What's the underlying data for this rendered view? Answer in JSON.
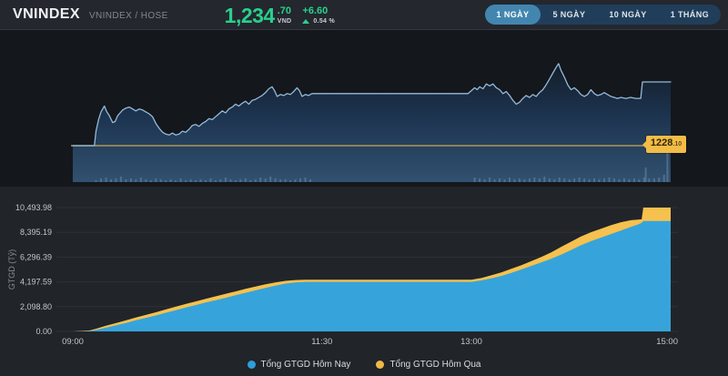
{
  "header": {
    "title": "VNINDEX",
    "subtitle": "VNINDEX / HOSE",
    "price_int": "1,234",
    "price_dec": ".70",
    "currency": "VND",
    "change": "+6.60",
    "change_pct": "0.54 %",
    "up_color": "#29d08d",
    "range_buttons": [
      {
        "label": "1 NGÀY",
        "active": true
      },
      {
        "label": "5 NGÀY",
        "active": false
      },
      {
        "label": "10 NGÀY",
        "active": false
      },
      {
        "label": "1 THÁNG",
        "active": false
      }
    ]
  },
  "chart_data": [
    {
      "type": "line",
      "title": "VNINDEX intraday price",
      "x_unit": "minutes from 09:00",
      "x_range": [
        0,
        360
      ],
      "y_domain": [
        1224.3,
        1238.4
      ],
      "reference_price": 1228.1,
      "reference_label_int": "1228",
      "reference_label_dec": ".10",
      "line_color": "#93bad9",
      "reference_line_color": "#b09655",
      "reference_label_bg": "#f3bc47",
      "fill_gradient": [
        "#141d29",
        "#1d3450",
        "#31516f"
      ],
      "volume_bar_color": "rgba(150,190,225,0.30)",
      "points": [
        [
          0,
          1228.1
        ],
        [
          13,
          1228.1
        ],
        [
          14,
          1229.6
        ],
        [
          15.5,
          1230.8
        ],
        [
          17,
          1231.6
        ],
        [
          19,
          1232.2
        ],
        [
          20.5,
          1231.6
        ],
        [
          22,
          1231.2
        ],
        [
          24,
          1230.5
        ],
        [
          25.5,
          1230.6
        ],
        [
          27,
          1231.2
        ],
        [
          28.5,
          1231.5
        ],
        [
          30,
          1231.8
        ],
        [
          32,
          1232.0
        ],
        [
          34,
          1232.1
        ],
        [
          36,
          1231.9
        ],
        [
          38,
          1231.7
        ],
        [
          40,
          1231.9
        ],
        [
          42,
          1231.8
        ],
        [
          44,
          1231.6
        ],
        [
          46,
          1231.4
        ],
        [
          48,
          1231.1
        ],
        [
          50,
          1230.4
        ],
        [
          52,
          1229.9
        ],
        [
          54,
          1229.5
        ],
        [
          56,
          1229.3
        ],
        [
          58,
          1229.2
        ],
        [
          60,
          1229.4
        ],
        [
          62,
          1229.2
        ],
        [
          64,
          1229.3
        ],
        [
          66,
          1229.6
        ],
        [
          68,
          1229.5
        ],
        [
          70,
          1229.8
        ],
        [
          72,
          1230.2
        ],
        [
          74,
          1230.3
        ],
        [
          76,
          1230.1
        ],
        [
          78,
          1230.4
        ],
        [
          80,
          1230.6
        ],
        [
          82,
          1230.9
        ],
        [
          84,
          1230.8
        ],
        [
          86,
          1231.1
        ],
        [
          88,
          1231.4
        ],
        [
          90,
          1231.7
        ],
        [
          92,
          1231.5
        ],
        [
          94,
          1231.9
        ],
        [
          96,
          1232.1
        ],
        [
          98,
          1232.4
        ],
        [
          100,
          1232.2
        ],
        [
          102,
          1232.5
        ],
        [
          104,
          1232.7
        ],
        [
          106,
          1232.4
        ],
        [
          108,
          1232.8
        ],
        [
          110,
          1232.9
        ],
        [
          112,
          1233.1
        ],
        [
          114,
          1233.3
        ],
        [
          116,
          1233.6
        ],
        [
          118,
          1234.0
        ],
        [
          120,
          1234.2
        ],
        [
          121.5,
          1233.8
        ],
        [
          123,
          1233.2
        ],
        [
          125,
          1233.4
        ],
        [
          127,
          1233.3
        ],
        [
          129,
          1233.5
        ],
        [
          131,
          1233.4
        ],
        [
          133,
          1233.7
        ],
        [
          135,
          1234.1
        ],
        [
          136.5,
          1233.8
        ],
        [
          138,
          1233.2
        ],
        [
          140,
          1233.4
        ],
        [
          142,
          1233.3
        ],
        [
          144,
          1233.5
        ],
        [
          238,
          1233.5
        ],
        [
          240,
          1233.8
        ],
        [
          242,
          1234.1
        ],
        [
          243.5,
          1233.9
        ],
        [
          245,
          1234.2
        ],
        [
          247,
          1234.0
        ],
        [
          249,
          1234.5
        ],
        [
          251,
          1234.3
        ],
        [
          253,
          1234.5
        ],
        [
          255,
          1234.1
        ],
        [
          257,
          1233.9
        ],
        [
          259,
          1233.5
        ],
        [
          261,
          1233.7
        ],
        [
          263,
          1233.3
        ],
        [
          265,
          1232.8
        ],
        [
          267,
          1232.4
        ],
        [
          269,
          1232.6
        ],
        [
          271,
          1233.0
        ],
        [
          273,
          1233.3
        ],
        [
          275,
          1233.1
        ],
        [
          277,
          1233.4
        ],
        [
          279,
          1233.2
        ],
        [
          281,
          1233.6
        ],
        [
          283,
          1233.9
        ],
        [
          285,
          1234.4
        ],
        [
          287,
          1235.0
        ],
        [
          289,
          1235.6
        ],
        [
          291,
          1236.2
        ],
        [
          292.5,
          1236.6
        ],
        [
          294,
          1235.9
        ],
        [
          296,
          1235.2
        ],
        [
          298,
          1234.4
        ],
        [
          300,
          1233.9
        ],
        [
          302,
          1234.1
        ],
        [
          304,
          1233.8
        ],
        [
          306,
          1233.4
        ],
        [
          308,
          1233.2
        ],
        [
          310,
          1233.4
        ],
        [
          312,
          1233.9
        ],
        [
          314,
          1233.5
        ],
        [
          316,
          1233.3
        ],
        [
          318,
          1233.4
        ],
        [
          320,
          1233.6
        ],
        [
          322,
          1233.4
        ],
        [
          324,
          1233.2
        ],
        [
          326,
          1233.1
        ],
        [
          328,
          1233.0
        ],
        [
          330,
          1233.1
        ],
        [
          333,
          1233.0
        ],
        [
          336,
          1233.1
        ],
        [
          339,
          1233.0
        ],
        [
          342,
          1233.0
        ],
        [
          343,
          1234.7
        ],
        [
          360,
          1234.7
        ]
      ],
      "volume_bars": [
        [
          14,
          2
        ],
        [
          17,
          4
        ],
        [
          20,
          5
        ],
        [
          23,
          3
        ],
        [
          26,
          4
        ],
        [
          29,
          6
        ],
        [
          32,
          3
        ],
        [
          35,
          4
        ],
        [
          38,
          3
        ],
        [
          41,
          5
        ],
        [
          44,
          3
        ],
        [
          47,
          2
        ],
        [
          50,
          4
        ],
        [
          53,
          3
        ],
        [
          56,
          2
        ],
        [
          59,
          3
        ],
        [
          62,
          2
        ],
        [
          65,
          4
        ],
        [
          68,
          2
        ],
        [
          71,
          3
        ],
        [
          74,
          2
        ],
        [
          77,
          3
        ],
        [
          80,
          2
        ],
        [
          83,
          4
        ],
        [
          86,
          2
        ],
        [
          89,
          3
        ],
        [
          92,
          5
        ],
        [
          95,
          3
        ],
        [
          98,
          2
        ],
        [
          101,
          3
        ],
        [
          104,
          4
        ],
        [
          107,
          2
        ],
        [
          110,
          3
        ],
        [
          113,
          5
        ],
        [
          116,
          4
        ],
        [
          119,
          6
        ],
        [
          122,
          4
        ],
        [
          125,
          3
        ],
        [
          128,
          3
        ],
        [
          131,
          2
        ],
        [
          134,
          3
        ],
        [
          137,
          4
        ],
        [
          140,
          5
        ],
        [
          143,
          3
        ],
        [
          242,
          5
        ],
        [
          245,
          4
        ],
        [
          248,
          3
        ],
        [
          251,
          5
        ],
        [
          254,
          3
        ],
        [
          257,
          4
        ],
        [
          260,
          3
        ],
        [
          263,
          5
        ],
        [
          266,
          3
        ],
        [
          269,
          4
        ],
        [
          272,
          3
        ],
        [
          275,
          4
        ],
        [
          278,
          5
        ],
        [
          281,
          4
        ],
        [
          284,
          6
        ],
        [
          287,
          4
        ],
        [
          290,
          3
        ],
        [
          293,
          5
        ],
        [
          296,
          4
        ],
        [
          299,
          3
        ],
        [
          302,
          4
        ],
        [
          305,
          5
        ],
        [
          308,
          4
        ],
        [
          311,
          3
        ],
        [
          314,
          4
        ],
        [
          317,
          3
        ],
        [
          320,
          4
        ],
        [
          323,
          5
        ],
        [
          326,
          4
        ],
        [
          329,
          3
        ],
        [
          332,
          4
        ],
        [
          335,
          3
        ],
        [
          338,
          4
        ],
        [
          341,
          3
        ],
        [
          344,
          5
        ],
        [
          345,
          16
        ],
        [
          347,
          4
        ],
        [
          350,
          4
        ],
        [
          353,
          5
        ],
        [
          356,
          8
        ],
        [
          358,
          40
        ]
      ]
    },
    {
      "type": "area",
      "ylabel": "GTGD (Tỷ)",
      "ylim": [
        0,
        10493.98
      ],
      "ytick_labels": [
        "0.00",
        "2,098.80",
        "4,197.59",
        "6,296.39",
        "8,395.19",
        "10,493.98"
      ],
      "ytick_values": [
        0,
        2098.8,
        4197.59,
        6296.39,
        8395.19,
        10493.98
      ],
      "xticks": [
        {
          "label": "09:00",
          "t": 0
        },
        {
          "label": "11:30",
          "t": 150
        },
        {
          "label": "13:00",
          "t": 240
        },
        {
          "label": "15:00",
          "t": 360
        }
      ],
      "grid_color": "#2d3138",
      "series": [
        {
          "name": "Tổng GTGD Hôm Qua",
          "color": "#f6c14e",
          "points": [
            [
              0,
              0
            ],
            [
              10,
              80
            ],
            [
              14,
              220
            ],
            [
              20,
              480
            ],
            [
              26,
              700
            ],
            [
              32,
              930
            ],
            [
              38,
              1180
            ],
            [
              44,
              1400
            ],
            [
              50,
              1620
            ],
            [
              56,
              1860
            ],
            [
              62,
              2090
            ],
            [
              68,
              2320
            ],
            [
              74,
              2540
            ],
            [
              80,
              2760
            ],
            [
              86,
              2970
            ],
            [
              92,
              3180
            ],
            [
              98,
              3390
            ],
            [
              104,
              3600
            ],
            [
              110,
              3800
            ],
            [
              116,
              3990
            ],
            [
              122,
              4150
            ],
            [
              128,
              4280
            ],
            [
              134,
              4350
            ],
            [
              140,
              4380
            ],
            [
              240,
              4380
            ],
            [
              246,
              4520
            ],
            [
              252,
              4750
            ],
            [
              258,
              5000
            ],
            [
              264,
              5300
            ],
            [
              270,
              5600
            ],
            [
              276,
              5950
            ],
            [
              282,
              6300
            ],
            [
              288,
              6700
            ],
            [
              294,
              7150
            ],
            [
              300,
              7600
            ],
            [
              306,
              8050
            ],
            [
              312,
              8400
            ],
            [
              318,
              8700
            ],
            [
              324,
              9000
            ],
            [
              330,
              9250
            ],
            [
              336,
              9420
            ],
            [
              342.5,
              9500
            ],
            [
              343.5,
              10493.98
            ],
            [
              360,
              10493.98
            ]
          ]
        },
        {
          "name": "Tổng GTGD Hôm Nay",
          "color": "#36a4db",
          "points": [
            [
              0,
              0
            ],
            [
              10,
              30
            ],
            [
              14,
              120
            ],
            [
              20,
              320
            ],
            [
              26,
              520
            ],
            [
              32,
              720
            ],
            [
              38,
              950
            ],
            [
              44,
              1150
            ],
            [
              50,
              1350
            ],
            [
              56,
              1580
            ],
            [
              62,
              1800
            ],
            [
              68,
              2020
            ],
            [
              74,
              2230
            ],
            [
              80,
              2450
            ],
            [
              86,
              2650
            ],
            [
              92,
              2850
            ],
            [
              98,
              3060
            ],
            [
              104,
              3270
            ],
            [
              110,
              3480
            ],
            [
              116,
              3680
            ],
            [
              122,
              3880
            ],
            [
              128,
              4050
            ],
            [
              134,
              4150
            ],
            [
              140,
              4197
            ],
            [
              240,
              4197
            ],
            [
              246,
              4320
            ],
            [
              252,
              4500
            ],
            [
              258,
              4700
            ],
            [
              264,
              4950
            ],
            [
              270,
              5250
            ],
            [
              276,
              5550
            ],
            [
              282,
              5850
            ],
            [
              288,
              6150
            ],
            [
              294,
              6500
            ],
            [
              300,
              6900
            ],
            [
              306,
              7300
            ],
            [
              312,
              7650
            ],
            [
              318,
              7950
            ],
            [
              324,
              8250
            ],
            [
              330,
              8550
            ],
            [
              336,
              8850
            ],
            [
              340,
              9050
            ],
            [
              342.5,
              9200
            ],
            [
              343.5,
              9350
            ],
            [
              360,
              9350
            ]
          ]
        }
      ],
      "legend": [
        {
          "label": "Tổng GTGD Hôm Nay",
          "color": "#2e9fd9"
        },
        {
          "label": "Tổng GTGD Hôm Qua",
          "color": "#f0b945"
        }
      ],
      "legend_position": "bottom-center"
    }
  ]
}
